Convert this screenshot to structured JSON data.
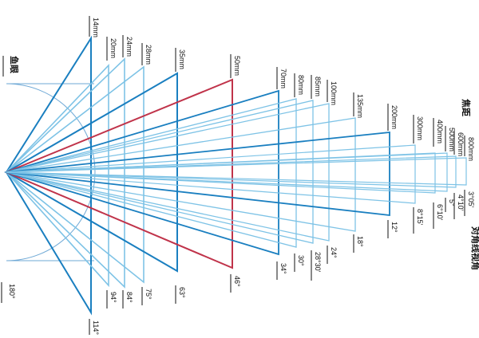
{
  "labels": {
    "fisheye_title": "鱼眼",
    "fisheye_angle": "180°",
    "focal_title": "焦距",
    "angle_title": "对角线视角"
  },
  "colors": {
    "primary": "#1a7fc0",
    "highlight": "#c0334a",
    "light": "#7ec3e6",
    "arc": "#6fa9d6",
    "text": "#111111"
  },
  "lenses": [
    {
      "focal": "14mm",
      "angle": "114°",
      "style": "primary"
    },
    {
      "focal": "20mm",
      "angle": "94°",
      "style": "light"
    },
    {
      "focal": "24mm",
      "angle": "84°",
      "style": "light"
    },
    {
      "focal": "28mm",
      "angle": "75°",
      "style": "light"
    },
    {
      "focal": "35mm",
      "angle": "63°",
      "style": "primary"
    },
    {
      "focal": "50mm",
      "angle": "46°",
      "style": "highlight"
    },
    {
      "focal": "70mm",
      "angle": "34°",
      "style": "primary"
    },
    {
      "focal": "80mm",
      "angle": "30°",
      "style": "light"
    },
    {
      "focal": "85mm",
      "angle": "28°30'",
      "style": "light"
    },
    {
      "focal": "100mm",
      "angle": "24°",
      "style": "light"
    },
    {
      "focal": "135mm",
      "angle": "18°",
      "style": "light"
    },
    {
      "focal": "200mm",
      "angle": "12°",
      "style": "primary"
    },
    {
      "focal": "300mm",
      "angle": "8°15'",
      "style": "light"
    },
    {
      "focal": "400mm",
      "angle": "6°10'",
      "style": "light"
    },
    {
      "focal": "500mm",
      "angle": "5°",
      "style": "light"
    },
    {
      "focal": "600mm",
      "angle": "4°10'",
      "style": "light"
    },
    {
      "focal": "800mm",
      "angle": "3°05'",
      "style": "light"
    }
  ]
}
